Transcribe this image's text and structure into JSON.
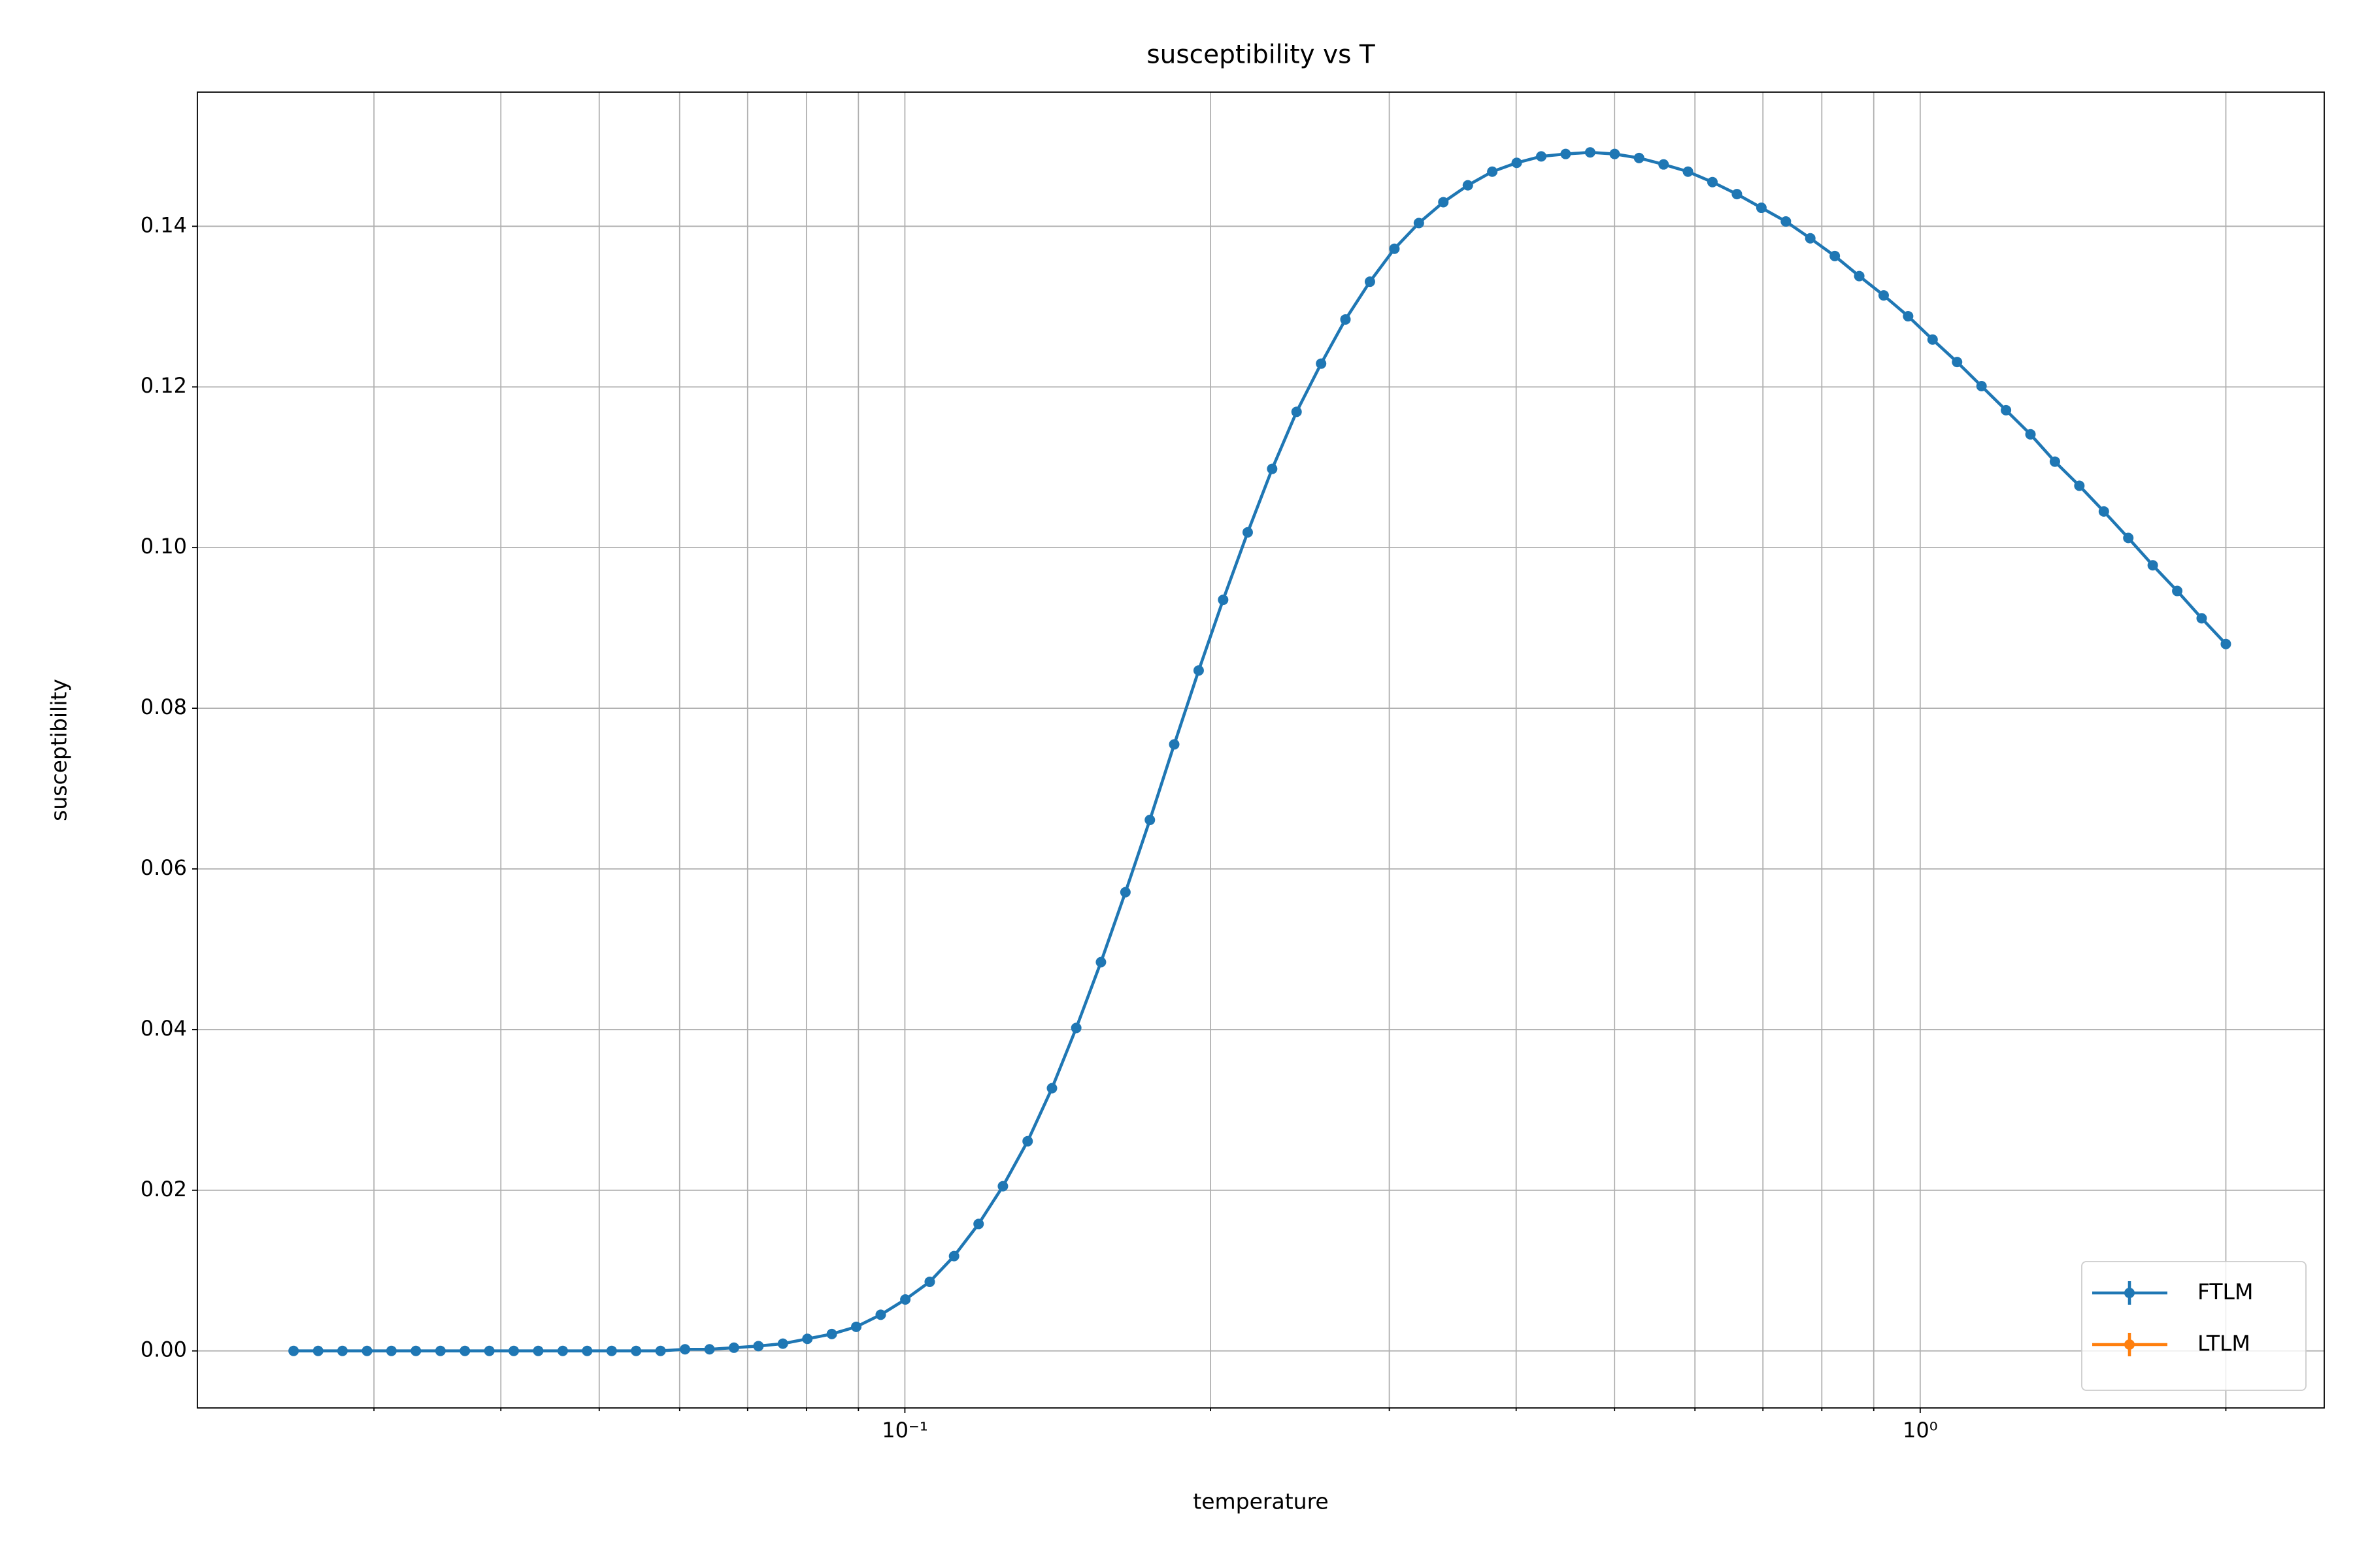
{
  "chart_data": {
    "type": "line",
    "title": "susceptibility vs T",
    "xlabel": "temperature",
    "ylabel": "susceptibility",
    "xscale": "log",
    "grid": true,
    "legend": "lower right",
    "xlim": [
      0.0201,
      2.5
    ],
    "ylim": [
      -0.0071,
      0.1567
    ],
    "xticks": [
      {
        "value": 0.1,
        "label": "10⁻¹"
      },
      {
        "value": 1,
        "label": "10⁰"
      }
    ],
    "xminorticks": [
      0.03,
      0.04,
      0.05,
      0.06,
      0.07,
      0.08,
      0.09,
      0.2,
      0.3,
      0.4,
      0.5,
      0.6,
      0.7,
      0.8,
      0.9,
      2
    ],
    "yticks": [
      {
        "value": 0,
        "label": "0.00"
      },
      {
        "value": 0.02,
        "label": "0.02"
      },
      {
        "value": 0.04,
        "label": "0.04"
      },
      {
        "value": 0.06,
        "label": "0.06"
      },
      {
        "value": 0.08,
        "label": "0.08"
      },
      {
        "value": 0.1,
        "label": "0.10"
      },
      {
        "value": 0.12,
        "label": "0.12"
      },
      {
        "value": 0.14,
        "label": "0.14"
      }
    ],
    "x": [
      0.025,
      0.02643,
      0.02793,
      0.02953,
      0.03121,
      0.03299,
      0.03488,
      0.03687,
      0.03897,
      0.04119,
      0.04354,
      0.04603,
      0.04865,
      0.05143,
      0.05436,
      0.05746,
      0.06074,
      0.06421,
      0.06787,
      0.07174,
      0.07583,
      0.08016,
      0.08473,
      0.08956,
      0.09467,
      0.1001,
      0.1058,
      0.1118,
      0.1182,
      0.1249,
      0.1321,
      0.1396,
      0.1475,
      0.156,
      0.1649,
      0.1743,
      0.1842,
      0.1947,
      0.2058,
      0.2176,
      0.23,
      0.2431,
      0.257,
      0.2716,
      0.2871,
      0.3035,
      0.3208,
      0.3391,
      0.3585,
      0.3789,
      0.4005,
      0.4234,
      0.4475,
      0.4731,
      0.5001,
      0.5286,
      0.5588,
      0.5906,
      0.6243,
      0.6599,
      0.6976,
      0.7374,
      0.7794,
      0.8239,
      0.8709,
      0.9205,
      0.973,
      1.0285,
      1.0872,
      1.1492,
      1.2148,
      1.2841,
      1.3573,
      1.4347,
      1.5166,
      1.6031,
      1.6945,
      1.7912,
      1.8933,
      2.0
    ],
    "series": [
      {
        "name": "FTLM",
        "color": "#1f77b4",
        "values": [
          0,
          0,
          0,
          0,
          0,
          0,
          0,
          0,
          0,
          0,
          0,
          0,
          0,
          0,
          0,
          0,
          0.0002,
          0.0002,
          0.0004,
          0.0006,
          0.0009,
          0.0015,
          0.0021,
          0.003,
          0.0045,
          0.0064,
          0.0086,
          0.0118,
          0.0158,
          0.0205,
          0.0261,
          0.0327,
          0.0402,
          0.0484,
          0.0571,
          0.0661,
          0.0755,
          0.0847,
          0.0935,
          0.1019,
          0.1098,
          0.1169,
          0.1229,
          0.1284,
          0.1331,
          0.1372,
          0.1404,
          0.143,
          0.1451,
          0.1468,
          0.1479,
          0.1487,
          0.149,
          0.1492,
          0.149,
          0.1485,
          0.1477,
          0.1468,
          0.1455,
          0.144,
          0.1423,
          0.1406,
          0.1385,
          0.1363,
          0.1338,
          0.1314,
          0.1288,
          0.1259,
          0.1231,
          0.1201,
          0.1171,
          0.1141,
          0.1107,
          0.1077,
          0.1045,
          0.1012,
          0.0978,
          0.0946,
          0.0912,
          0.088
        ]
      },
      {
        "name": "LTLM",
        "color": "#ff7f0e",
        "values": [
          null,
          null,
          null,
          null,
          null,
          null,
          null,
          null,
          null,
          null,
          null,
          null,
          null,
          null,
          null,
          null,
          null,
          null,
          null,
          null,
          null,
          null,
          null,
          null,
          null,
          null,
          null,
          null,
          null,
          null,
          null,
          null,
          null,
          null,
          null,
          null,
          null,
          null,
          null,
          null,
          null,
          null,
          null,
          null,
          null,
          null,
          null,
          null,
          null,
          null,
          null,
          null,
          null,
          null,
          null,
          null,
          null,
          null,
          null,
          null,
          null,
          null,
          null,
          null,
          null,
          null,
          null,
          null,
          null,
          null,
          null,
          null,
          null,
          null,
          null,
          null,
          null,
          null,
          null,
          null
        ]
      }
    ]
  }
}
